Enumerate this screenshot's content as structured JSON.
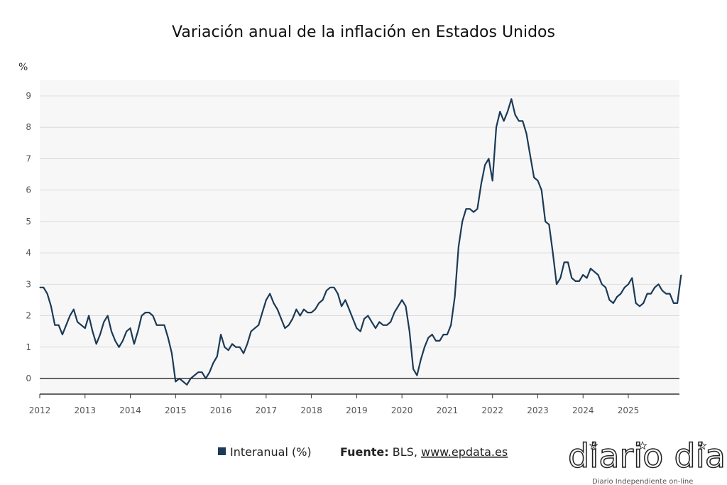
{
  "chart_data": {
    "type": "line",
    "title": "Variación anual de la inflación en Estados Unidos",
    "ylabel": "%",
    "xlabel": "",
    "ylim": [
      -0.5,
      9.5
    ],
    "yticks": [
      "0",
      "1",
      "2",
      "3",
      "4",
      "5",
      "6",
      "7",
      "8",
      "9"
    ],
    "xticks": [
      "2012",
      "2013",
      "2014",
      "2015",
      "2016",
      "2017",
      "2018",
      "2019",
      "2020",
      "2021",
      "2022",
      "2023",
      "2024",
      "2025"
    ],
    "x_start": "2012-01",
    "x_frequency": "monthly",
    "grid": true,
    "legend_position": "bottom",
    "series": [
      {
        "name": "Interanual (%)",
        "color": "#1b3a57",
        "values": [
          2.9,
          2.9,
          2.7,
          2.3,
          1.7,
          1.7,
          1.4,
          1.7,
          2.0,
          2.2,
          1.8,
          1.7,
          1.6,
          2.0,
          1.5,
          1.1,
          1.4,
          1.8,
          2.0,
          1.5,
          1.2,
          1.0,
          1.2,
          1.5,
          1.6,
          1.1,
          1.5,
          2.0,
          2.1,
          2.1,
          2.0,
          1.7,
          1.7,
          1.7,
          1.3,
          0.8,
          -0.1,
          0.0,
          -0.1,
          -0.2,
          0.0,
          0.1,
          0.2,
          0.2,
          0.0,
          0.2,
          0.5,
          0.7,
          1.4,
          1.0,
          0.9,
          1.1,
          1.0,
          1.0,
          0.8,
          1.1,
          1.5,
          1.6,
          1.7,
          2.1,
          2.5,
          2.7,
          2.4,
          2.2,
          1.9,
          1.6,
          1.7,
          1.9,
          2.2,
          2.0,
          2.2,
          2.1,
          2.1,
          2.2,
          2.4,
          2.5,
          2.8,
          2.9,
          2.9,
          2.7,
          2.3,
          2.5,
          2.2,
          1.9,
          1.6,
          1.5,
          1.9,
          2.0,
          1.8,
          1.6,
          1.8,
          1.7,
          1.7,
          1.8,
          2.1,
          2.3,
          2.5,
          2.3,
          1.5,
          0.3,
          0.1,
          0.6,
          1.0,
          1.3,
          1.4,
          1.2,
          1.2,
          1.4,
          1.4,
          1.7,
          2.6,
          4.2,
          5.0,
          5.4,
          5.4,
          5.3,
          5.4,
          6.2,
          6.8,
          7.0,
          6.3,
          8.0,
          8.5,
          8.2,
          8.5,
          8.9,
          8.4,
          8.2,
          8.2,
          7.8,
          7.1,
          6.4,
          6.3,
          6.0,
          5.0,
          4.9,
          4.0,
          3.0,
          3.2,
          3.7,
          3.7,
          3.2,
          3.1,
          3.1,
          3.3,
          3.2,
          3.5,
          3.4,
          3.3,
          3.0,
          2.9,
          2.5,
          2.4,
          2.6,
          2.7,
          2.9,
          3.0,
          3.2,
          2.4,
          2.3,
          2.4,
          2.7,
          2.7,
          2.9,
          3.0,
          2.8,
          2.7,
          2.7,
          2.4,
          2.4,
          3.3
        ]
      }
    ]
  },
  "legend": {
    "series_label": "Interanual (%)",
    "source_label": "Fuente:",
    "source_text": "BLS,",
    "source_link": "www.epdata.es"
  },
  "logo": {
    "name": "diario dia",
    "tagline": "Diario Independiente on-line"
  }
}
